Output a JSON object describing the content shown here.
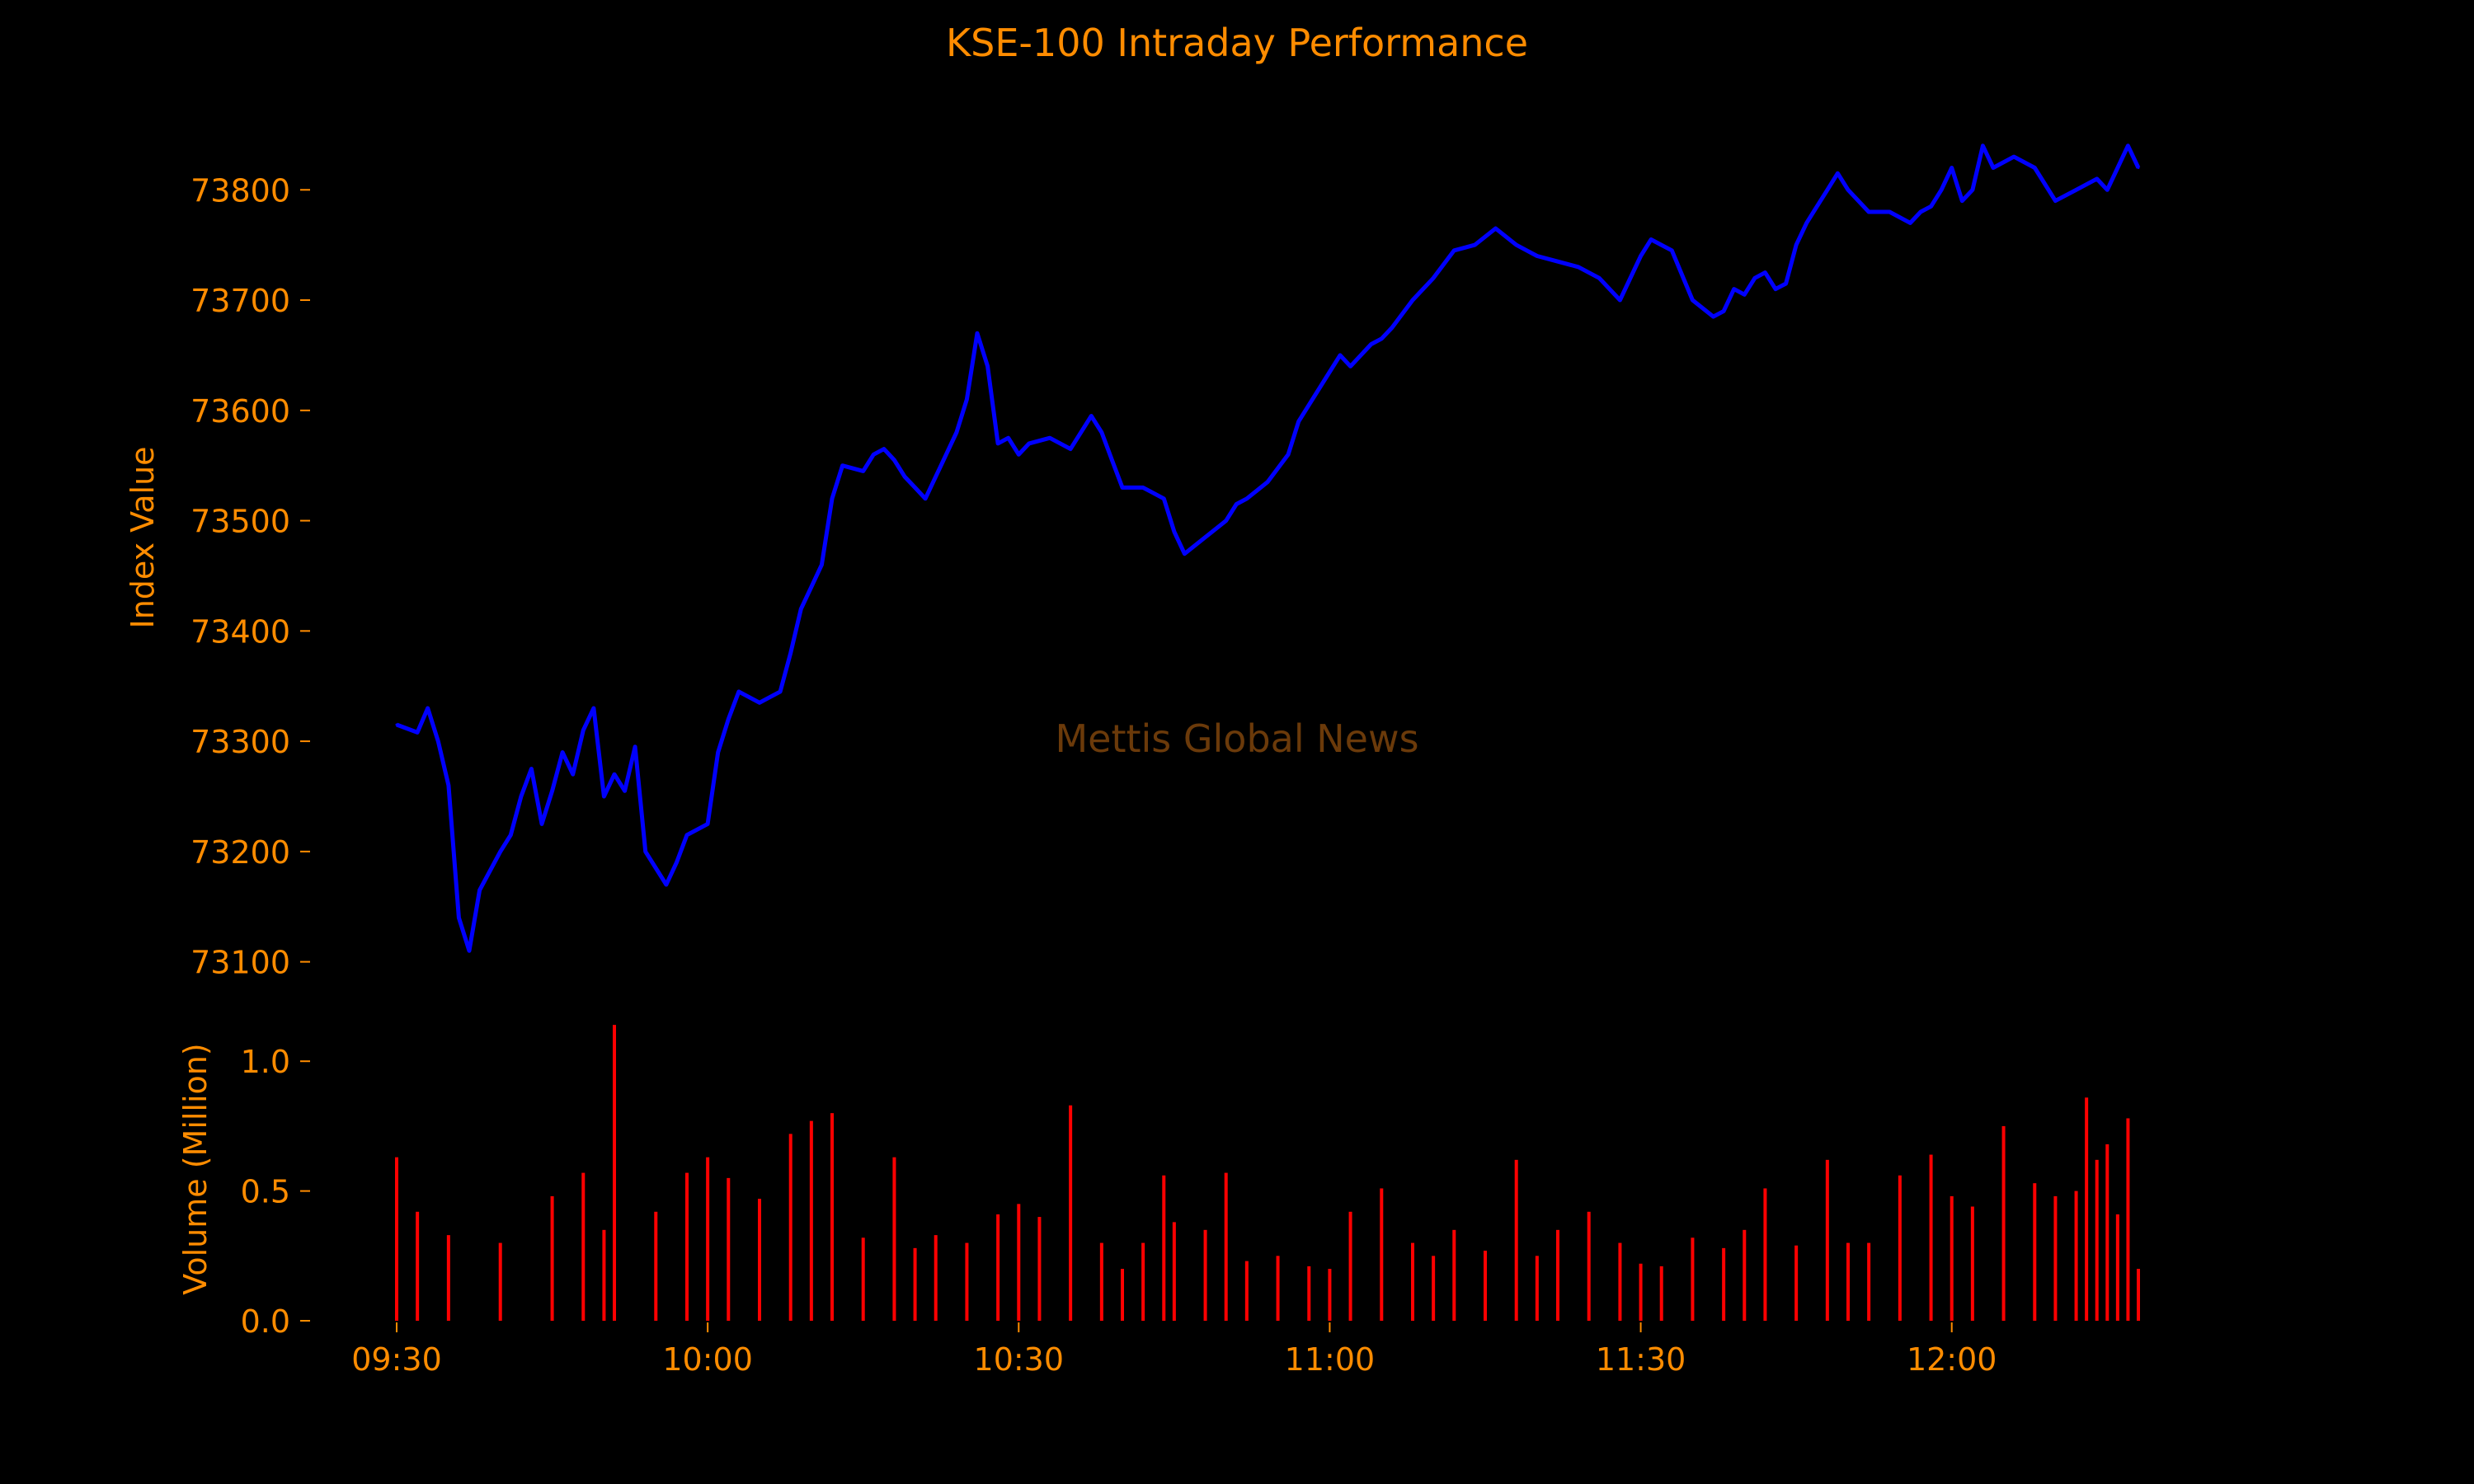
{
  "colors": {
    "background": "#000000",
    "text": "#ff8c00",
    "index_line": "#0000ff",
    "volume_bars": "#ff0000",
    "watermark": "#6b3a0a"
  },
  "watermark": "Mettis Global News",
  "chart_data": [
    {
      "type": "line",
      "title": "KSE-100 Intraday Performance",
      "ylabel": "Index Value",
      "xlabel": "",
      "ylim": [
        73090,
        73860
      ],
      "yticks": [
        73100,
        73200,
        73300,
        73400,
        73500,
        73600,
        73700,
        73800
      ],
      "ytick_labels": [
        "73100",
        "73200",
        "73300",
        "73400",
        "73500",
        "73600",
        "73700",
        "73800"
      ],
      "grid": false,
      "series": [
        {
          "x": [
            "09:30",
            "09:32",
            "09:33",
            "09:34",
            "09:35",
            "09:36",
            "09:37",
            "09:38",
            "09:40",
            "09:41",
            "09:42",
            "09:43",
            "09:44",
            "09:45",
            "09:46",
            "09:47",
            "09:48",
            "09:49",
            "09:50",
            "09:51",
            "09:52",
            "09:53",
            "09:54",
            "09:56",
            "09:57",
            "09:58",
            "10:00",
            "10:01",
            "10:02",
            "10:03",
            "10:05",
            "10:06",
            "10:07",
            "10:08",
            "10:09",
            "10:10",
            "10:11",
            "10:12",
            "10:13",
            "10:15",
            "10:16",
            "10:17",
            "10:18",
            "10:19",
            "10:20",
            "10:21",
            "10:22",
            "10:23",
            "10:24",
            "10:25",
            "10:26",
            "10:27",
            "10:28",
            "10:29",
            "10:30",
            "10:31",
            "10:33",
            "10:35",
            "10:37",
            "10:38",
            "10:39",
            "10:40",
            "10:42",
            "10:44",
            "10:45",
            "10:46",
            "10:48",
            "10:50",
            "10:51",
            "10:52",
            "10:54",
            "10:56",
            "10:57",
            "10:58",
            "11:00",
            "11:01",
            "11:02",
            "11:03",
            "11:04",
            "11:05",
            "11:06",
            "11:08",
            "11:10",
            "11:12",
            "11:14",
            "11:16",
            "11:18",
            "11:19",
            "11:20",
            "11:22",
            "11:24",
            "11:26",
            "11:28",
            "11:30",
            "11:31",
            "11:33",
            "11:35",
            "11:37",
            "11:38",
            "11:39",
            "11:40",
            "11:41",
            "11:42",
            "11:43",
            "11:44",
            "11:45",
            "11:46",
            "11:47",
            "11:48",
            "11:49",
            "11:50",
            "11:52",
            "11:54",
            "11:56",
            "11:57",
            "11:58",
            "11:59",
            "12:00",
            "12:01",
            "12:02",
            "12:03",
            "12:04",
            "12:06",
            "12:08",
            "12:10",
            "12:12",
            "12:14",
            "12:15",
            "12:16",
            "12:17",
            "12:18"
          ],
          "values": [
            73315,
            73308,
            73330,
            73300,
            73260,
            73140,
            73110,
            73165,
            73200,
            73215,
            73250,
            73275,
            73225,
            73255,
            73290,
            73270,
            73310,
            73330,
            73250,
            73270,
            73255,
            73295,
            73200,
            73170,
            73190,
            73215,
            73225,
            73290,
            73320,
            73345,
            73335,
            73340,
            73345,
            73380,
            73420,
            73440,
            73460,
            73520,
            73550,
            73545,
            73560,
            73565,
            73555,
            73540,
            73530,
            73520,
            73540,
            73560,
            73580,
            73610,
            73670,
            73640,
            73570,
            73575,
            73560,
            73570,
            73575,
            73565,
            73595,
            73580,
            73555,
            73530,
            73530,
            73520,
            73490,
            73470,
            73485,
            73500,
            73515,
            73520,
            73535,
            73560,
            73590,
            73605,
            73635,
            73650,
            73640,
            73650,
            73660,
            73665,
            73675,
            73700,
            73720,
            73745,
            73750,
            73765,
            73750,
            73745,
            73740,
            73735,
            73730,
            73720,
            73700,
            73740,
            73755,
            73745,
            73700,
            73685,
            73690,
            73710,
            73705,
            73720,
            73725,
            73710,
            73715,
            73750,
            73770,
            73785,
            73800,
            73815,
            73800,
            73780,
            73780,
            73770,
            73780,
            73785,
            73800,
            73820,
            73790,
            73800,
            73840,
            73820,
            73830,
            73820,
            73790,
            73800,
            73810,
            73800,
            73820,
            73840,
            73820
          ]
        }
      ]
    },
    {
      "type": "bar",
      "ylabel": "Volume (Million)",
      "ylim": [
        0,
        1.15
      ],
      "yticks": [
        0.0,
        0.5,
        1.0
      ],
      "ytick_labels": [
        "0.0",
        "0.5",
        "1.0"
      ],
      "xticks": [
        "09:30",
        "10:00",
        "10:30",
        "11:00",
        "11:30",
        "12:00"
      ],
      "grid": false,
      "series": [
        {
          "x": [
            "09:30",
            "09:32",
            "09:35",
            "09:40",
            "09:45",
            "09:48",
            "09:50",
            "09:51",
            "09:55",
            "09:58",
            "10:00",
            "10:02",
            "10:05",
            "10:08",
            "10:10",
            "10:12",
            "10:15",
            "10:18",
            "10:20",
            "10:22",
            "10:25",
            "10:28",
            "10:30",
            "10:32",
            "10:35",
            "10:38",
            "10:40",
            "10:42",
            "10:44",
            "10:45",
            "10:48",
            "10:50",
            "10:52",
            "10:55",
            "10:58",
            "11:00",
            "11:02",
            "11:05",
            "11:08",
            "11:10",
            "11:12",
            "11:15",
            "11:18",
            "11:20",
            "11:22",
            "11:25",
            "11:28",
            "11:30",
            "11:32",
            "11:35",
            "11:38",
            "11:40",
            "11:42",
            "11:45",
            "11:48",
            "11:50",
            "11:52",
            "11:55",
            "11:58",
            "12:00",
            "12:02",
            "12:05",
            "12:08",
            "12:10",
            "12:12",
            "12:13",
            "12:14",
            "12:15",
            "12:16",
            "12:17",
            "12:18"
          ],
          "values": [
            0.63,
            0.42,
            0.33,
            0.3,
            0.48,
            0.57,
            0.35,
            1.14,
            0.42,
            0.57,
            0.63,
            0.55,
            0.47,
            0.72,
            0.77,
            0.8,
            0.32,
            0.63,
            0.28,
            0.33,
            0.3,
            0.41,
            0.45,
            0.4,
            0.83,
            0.3,
            0.2,
            0.3,
            0.56,
            0.38,
            0.35,
            0.57,
            0.23,
            0.25,
            0.21,
            0.2,
            0.42,
            0.51,
            0.3,
            0.25,
            0.35,
            0.27,
            0.62,
            0.25,
            0.35,
            0.42,
            0.3,
            0.22,
            0.21,
            0.32,
            0.28,
            0.35,
            0.51,
            0.29,
            0.62,
            0.3,
            0.3,
            0.56,
            0.64,
            0.48,
            0.44,
            0.75,
            0.53,
            0.48,
            0.5,
            0.86,
            0.62,
            0.68,
            0.41,
            0.78,
            0.2
          ]
        }
      ]
    }
  ]
}
